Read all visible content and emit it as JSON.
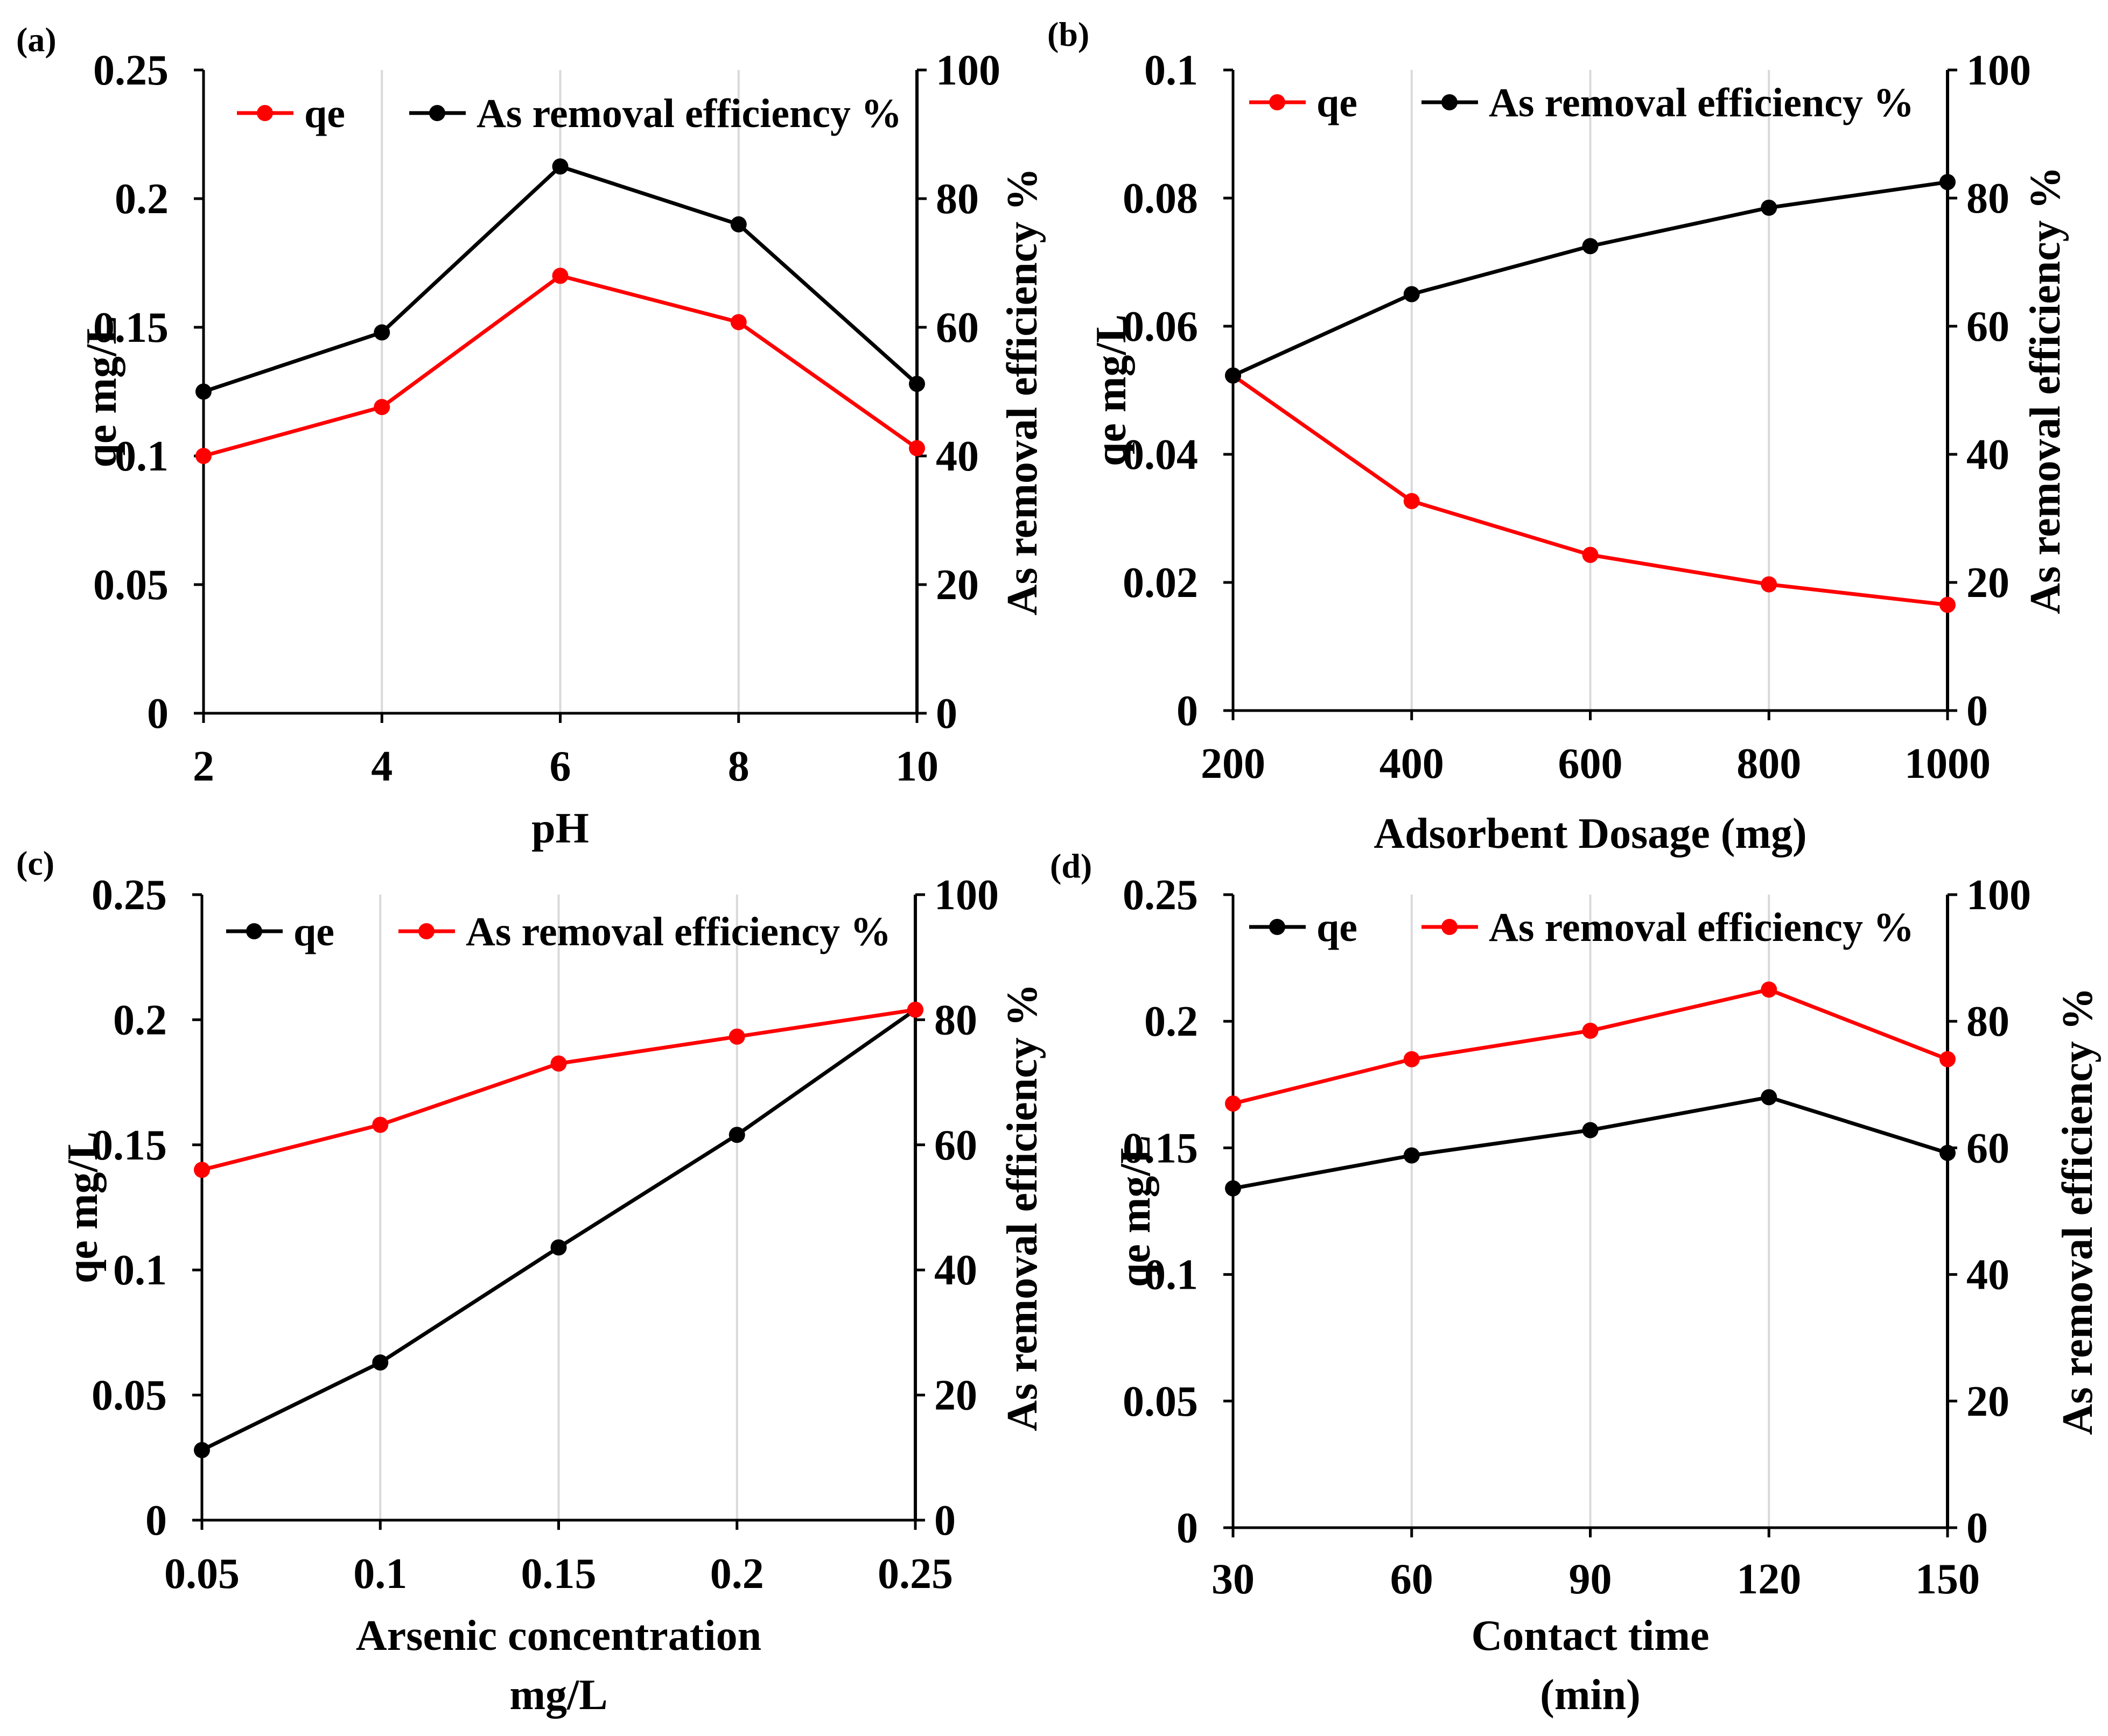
{
  "chart_data": [
    {
      "panel_label": "(a)",
      "type": "line",
      "x_ticks": [
        "2",
        "4",
        "6",
        "8",
        "10"
      ],
      "x": [
        2,
        4,
        6,
        8,
        10
      ],
      "xlim": [
        2,
        10
      ],
      "xlabel": [
        "pH"
      ],
      "ylabel_left": "qe mg/L",
      "ylabel_right": "As removal efficiency %",
      "ylim_left": [
        0,
        0.25
      ],
      "ylim_right": [
        0,
        100
      ],
      "y_ticks_left": [
        "0",
        "0.05",
        "0.1",
        "0.15",
        "0.2",
        "0.25"
      ],
      "y_ticks_right": [
        "0",
        "20",
        "40",
        "60",
        "80",
        "100"
      ],
      "legend_position": "top-right",
      "series": [
        {
          "name": "qe",
          "color": "#ff0000",
          "axis": "left",
          "values": [
            0.1,
            0.119,
            0.17,
            0.152,
            0.103
          ]
        },
        {
          "name": "As removal efficiency %",
          "color": "#000000",
          "axis": "right",
          "values": [
            50,
            59.2,
            85,
            76,
            51.2
          ]
        }
      ]
    },
    {
      "panel_label": "(b)",
      "type": "line",
      "x_ticks": [
        "200",
        "400",
        "600",
        "800",
        "1000"
      ],
      "x": [
        200,
        400,
        600,
        800,
        1000
      ],
      "xlim": [
        200,
        1000
      ],
      "xlabel": [
        "Adsorbent Dosage (mg)"
      ],
      "ylabel_left": "qe mg/L",
      "ylabel_right": "As removal efficiency %",
      "ylim_left": [
        0,
        0.1
      ],
      "ylim_right": [
        0,
        100
      ],
      "y_ticks_left": [
        "0",
        "0.02",
        "0.04",
        "0.06",
        "0.08",
        "0.1"
      ],
      "y_ticks_right": [
        "0",
        "20",
        "40",
        "60",
        "80",
        "100"
      ],
      "legend_position": "top-right",
      "series": [
        {
          "name": "qe",
          "color": "#ff0000",
          "axis": "left",
          "values": [
            0.0523,
            0.0327,
            0.0243,
            0.0197,
            0.0165
          ]
        },
        {
          "name": "As removal efficiency %",
          "color": "#000000",
          "axis": "right",
          "values": [
            52.3,
            65,
            72.5,
            78.5,
            82.5
          ]
        }
      ]
    },
    {
      "panel_label": "(c)",
      "type": "line",
      "x_ticks": [
        "0.05",
        "0.1",
        "0.15",
        "0.2",
        "0.25"
      ],
      "x": [
        0.05,
        0.1,
        0.15,
        0.2,
        0.25
      ],
      "xlim": [
        0.05,
        0.25
      ],
      "xlabel": [
        "Arsenic concentration",
        "mg/L"
      ],
      "ylabel_left": "qe mg/L",
      "ylabel_right": "As removal efficiency %",
      "ylim_left": [
        0,
        0.25
      ],
      "ylim_right": [
        0,
        100
      ],
      "y_ticks_left": [
        "0",
        "0.05",
        "0.1",
        "0.15",
        "0.2",
        "0.25"
      ],
      "y_ticks_right": [
        "0",
        "20",
        "40",
        "60",
        "80",
        "100"
      ],
      "legend_position": "top-right",
      "series": [
        {
          "name": "qe",
          "color": "#000000",
          "axis": "left",
          "values": [
            0.028,
            0.063,
            0.109,
            0.154,
            0.204
          ]
        },
        {
          "name": "As removal efficiency %",
          "color": "#ff0000",
          "axis": "right",
          "values": [
            56,
            63.2,
            73,
            77.3,
            81.6
          ]
        }
      ]
    },
    {
      "panel_label": "(d)",
      "type": "line",
      "x_ticks": [
        "30",
        "60",
        "90",
        "120",
        "150"
      ],
      "x": [
        30,
        60,
        90,
        120,
        150
      ],
      "xlim": [
        30,
        150
      ],
      "xlabel": [
        "Contact time",
        "(min)"
      ],
      "ylabel_left": "qe mg/L",
      "ylabel_right": "As removal efficiency %",
      "ylim_left": [
        0,
        0.25
      ],
      "ylim_right": [
        0,
        100
      ],
      "y_ticks_left": [
        "0",
        "0.05",
        "0.1",
        "0.15",
        "0.2",
        "0.25"
      ],
      "y_ticks_right": [
        "0",
        "20",
        "40",
        "60",
        "80",
        "100"
      ],
      "legend_position": "top-right",
      "series": [
        {
          "name": "qe",
          "color": "#000000",
          "axis": "left",
          "values": [
            0.134,
            0.147,
            0.157,
            0.17,
            0.148
          ]
        },
        {
          "name": "As removal efficiency %",
          "color": "#ff0000",
          "axis": "right",
          "values": [
            67,
            74,
            78.5,
            85,
            74
          ]
        }
      ]
    }
  ]
}
